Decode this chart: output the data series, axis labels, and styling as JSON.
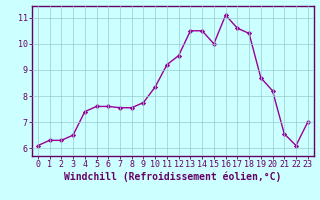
{
  "x": [
    0,
    1,
    2,
    3,
    4,
    5,
    6,
    7,
    8,
    9,
    10,
    11,
    12,
    13,
    14,
    15,
    16,
    17,
    18,
    19,
    20,
    21,
    22,
    23
  ],
  "y": [
    6.1,
    6.3,
    6.3,
    6.5,
    7.4,
    7.6,
    7.6,
    7.55,
    7.55,
    7.75,
    8.35,
    9.2,
    9.55,
    10.5,
    10.5,
    10.0,
    11.1,
    10.6,
    10.4,
    8.7,
    8.2,
    6.55,
    6.1,
    7.0
  ],
  "line_color": "#990099",
  "marker": "D",
  "markersize": 2.2,
  "linewidth": 1.0,
  "xlabel": "Windchill (Refroidissement éolien,°C)",
  "xlabel_color": "#660066",
  "xlabel_fontsize": 7,
  "bg_color": "#ccffff",
  "grid_color": "#99cccc",
  "tick_color": "#660066",
  "tick_fontsize": 6,
  "xlim": [
    -0.5,
    23.5
  ],
  "ylim": [
    5.7,
    11.45
  ],
  "yticks": [
    6,
    7,
    8,
    9,
    10,
    11
  ],
  "xticks": [
    0,
    1,
    2,
    3,
    4,
    5,
    6,
    7,
    8,
    9,
    10,
    11,
    12,
    13,
    14,
    15,
    16,
    17,
    18,
    19,
    20,
    21,
    22,
    23
  ],
  "spine_color": "#660066",
  "axis_linewidth": 1.0
}
